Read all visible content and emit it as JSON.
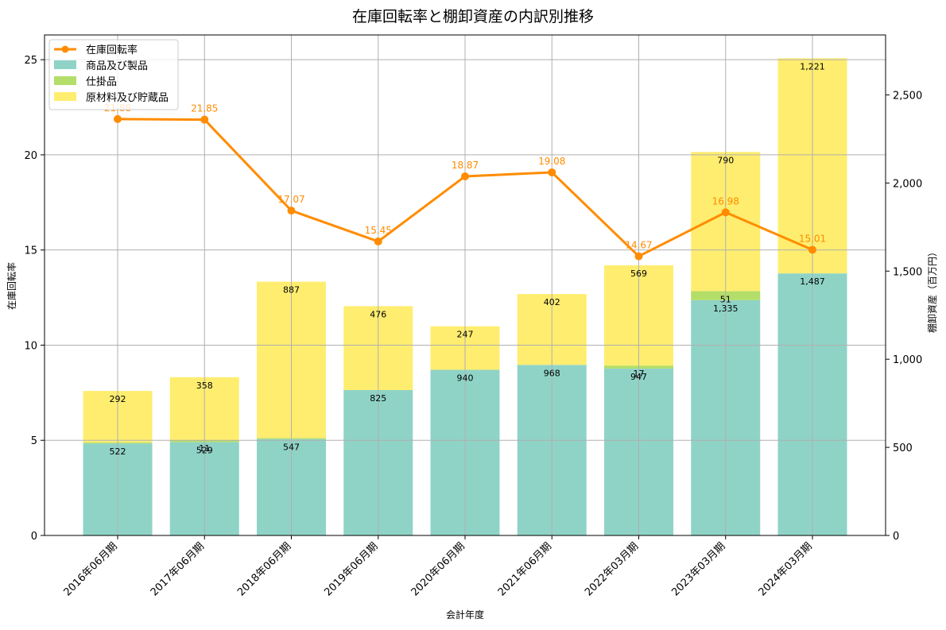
{
  "chart_data": {
    "type": "bar",
    "title": "在庫回転率と棚卸資産の内訳別推移",
    "xlabel": "会計年度",
    "ylabel_left": "在庫回転率",
    "ylabel_right": "棚卸資産（百万円）",
    "categories": [
      "2016年06月期",
      "2017年06月期",
      "2018年06月期",
      "2019年06月期",
      "2020年06月期",
      "2021年06月期",
      "2022年03月期",
      "2023年03月期",
      "2024年03月期"
    ],
    "ylim_left": [
      0,
      26.3
    ],
    "yticks_left": [
      0,
      5,
      10,
      15,
      20,
      25
    ],
    "ylim_right": [
      0,
      2840
    ],
    "yticks_right": [
      0,
      500,
      1000,
      1500,
      2000,
      2500
    ],
    "yticks_right_labels": [
      "0",
      "500",
      "1,000",
      "1,500",
      "2,000",
      "2,500"
    ],
    "grid": true,
    "legend_position": "top-left",
    "series": [
      {
        "name": "商品及び製品",
        "kind": "stacked-bar",
        "axis": "right",
        "color": "#8fd3c7",
        "values": [
          522,
          529,
          547,
          825,
          940,
          968,
          947,
          1335,
          1487
        ],
        "labels": [
          "522",
          "529",
          "547",
          "825",
          "940",
          "968",
          "947",
          "1,335",
          "1,487"
        ]
      },
      {
        "name": "仕掛品",
        "kind": "stacked-bar",
        "axis": "right",
        "color": "#b3de69",
        "values": [
          6,
          11,
          6,
          0,
          0,
          0,
          17,
          51,
          0
        ],
        "labels": [
          "",
          "11",
          "",
          "",
          "",
          "",
          "17",
          "51",
          ""
        ]
      },
      {
        "name": "原材料及び貯蔵品",
        "kind": "stacked-bar",
        "axis": "right",
        "color": "#ffed6f",
        "values": [
          292,
          358,
          887,
          476,
          247,
          402,
          569,
          790,
          1221
        ],
        "labels": [
          "292",
          "358",
          "887",
          "476",
          "247",
          "402",
          "569",
          "790",
          "1,221"
        ]
      },
      {
        "name": "在庫回転率",
        "kind": "line",
        "axis": "left",
        "color": "#ff8c00",
        "values": [
          21.88,
          21.85,
          17.07,
          15.45,
          18.87,
          19.08,
          14.67,
          16.98,
          15.01
        ],
        "labels": [
          "21.88",
          "21.85",
          "17.07",
          "15.45",
          "18.87",
          "19.08",
          "14.67",
          "16.98",
          "15.01"
        ]
      }
    ]
  }
}
